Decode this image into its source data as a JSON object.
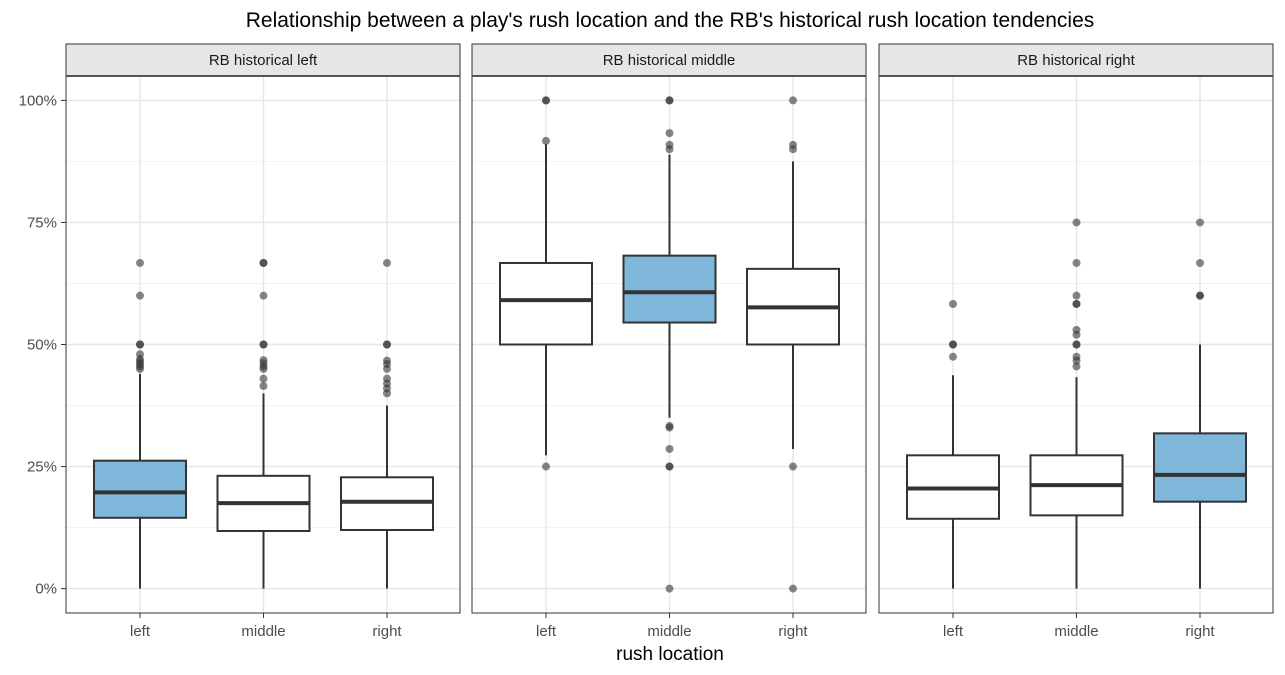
{
  "chart_data": {
    "type": "boxplot",
    "title": "Relationship between a play's rush location and the RB's historical rush location tendencies",
    "xlabel": "rush location",
    "ylabel": "",
    "ylim": [
      -0.05,
      1.05
    ],
    "y_ticks": [
      {
        "value": 0,
        "label": "0%"
      },
      {
        "value": 0.25,
        "label": "25%"
      },
      {
        "value": 0.5,
        "label": "50%"
      },
      {
        "value": 0.75,
        "label": "75%"
      },
      {
        "value": 1.0,
        "label": "100%"
      }
    ],
    "categories": [
      "left",
      "middle",
      "right"
    ],
    "grid": true,
    "colors": {
      "highlight": "#7fb7da",
      "normal": "#ffffff",
      "stroke": "#333333",
      "outlier": "#333333",
      "strip": "#e6e6e6"
    },
    "facets": [
      {
        "name": "RB historical left",
        "boxes": [
          {
            "category": "left",
            "q1": 0.145,
            "median": 0.197,
            "q3": 0.262,
            "whisker_low": 0.0,
            "whisker_high": 0.44,
            "highlight": true,
            "outliers": [
              0.45,
              0.455,
              0.46,
              0.465,
              0.47,
              0.48,
              0.5,
              0.5,
              0.6,
              0.667
            ]
          },
          {
            "category": "middle",
            "q1": 0.118,
            "median": 0.175,
            "q3": 0.231,
            "whisker_low": 0.0,
            "whisker_high": 0.4,
            "highlight": false,
            "outliers": [
              0.415,
              0.43,
              0.45,
              0.455,
              0.462,
              0.468,
              0.5,
              0.5,
              0.6,
              0.667,
              0.667
            ]
          },
          {
            "category": "right",
            "q1": 0.12,
            "median": 0.178,
            "q3": 0.228,
            "whisker_low": 0.0,
            "whisker_high": 0.375,
            "highlight": false,
            "outliers": [
              0.4,
              0.41,
              0.42,
              0.43,
              0.45,
              0.46,
              0.467,
              0.5,
              0.5,
              0.667
            ]
          }
        ]
      },
      {
        "name": "RB historical middle",
        "boxes": [
          {
            "category": "left",
            "q1": 0.5,
            "median": 0.591,
            "q3": 0.667,
            "whisker_low": 0.273,
            "whisker_high": 0.91,
            "highlight": false,
            "outliers": [
              0.25,
              0.917,
              1.0,
              1.0
            ]
          },
          {
            "category": "middle",
            "q1": 0.545,
            "median": 0.607,
            "q3": 0.682,
            "whisker_low": 0.35,
            "whisker_high": 0.889,
            "highlight": true,
            "outliers": [
              0.0,
              0.25,
              0.25,
              0.286,
              0.33,
              0.333,
              0.9,
              0.909,
              0.933,
              1.0,
              1.0
            ]
          },
          {
            "category": "right",
            "q1": 0.5,
            "median": 0.576,
            "q3": 0.655,
            "whisker_low": 0.286,
            "whisker_high": 0.875,
            "highlight": false,
            "outliers": [
              0.0,
              0.25,
              0.9,
              0.909,
              1.0
            ]
          }
        ]
      },
      {
        "name": "RB historical right",
        "boxes": [
          {
            "category": "left",
            "q1": 0.143,
            "median": 0.205,
            "q3": 0.273,
            "whisker_low": 0.0,
            "whisker_high": 0.437,
            "highlight": false,
            "outliers": [
              0.475,
              0.5,
              0.5,
              0.583
            ]
          },
          {
            "category": "middle",
            "q1": 0.15,
            "median": 0.212,
            "q3": 0.273,
            "whisker_low": 0.0,
            "whisker_high": 0.433,
            "highlight": false,
            "outliers": [
              0.455,
              0.467,
              0.475,
              0.5,
              0.5,
              0.52,
              0.53,
              0.583,
              0.583,
              0.6,
              0.667,
              0.75
            ]
          },
          {
            "category": "right",
            "q1": 0.178,
            "median": 0.233,
            "q3": 0.318,
            "whisker_low": 0.0,
            "whisker_high": 0.5,
            "highlight": true,
            "outliers": [
              0.6,
              0.6,
              0.667,
              0.75
            ]
          }
        ]
      }
    ]
  }
}
